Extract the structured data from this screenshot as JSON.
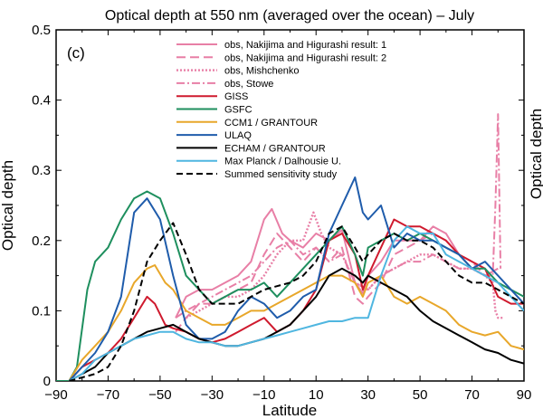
{
  "chart_data": {
    "type": "line",
    "title": "Optical depth at 550 nm (averaged over the ocean) – July",
    "panel_label": "(c)",
    "xlabel": "Latitude",
    "ylabel": "Optical depth",
    "right_clipped_label": "Optical depth",
    "xlim": [
      -90,
      90
    ],
    "ylim": [
      0,
      0.5
    ],
    "xticks": [
      -90,
      -70,
      -50,
      -30,
      -10,
      10,
      30,
      50,
      70,
      90
    ],
    "yticks": [
      0,
      0.1,
      0.2,
      0.3,
      0.4,
      0.5
    ],
    "ytick_labels": [
      "0",
      "0.1",
      "0.2",
      "0.3",
      "0.4",
      "0.5"
    ],
    "grid": false,
    "legend_position": "top-right",
    "series": [
      {
        "name": "obs, Nakijima and Higurashi result: 1",
        "color": "#e87fa6",
        "dash": "solid",
        "x": [
          -44,
          -40,
          -35,
          -30,
          -25,
          -20,
          -15,
          -10,
          -7,
          -3,
          0,
          5,
          10,
          15,
          20,
          25,
          28,
          30,
          35,
          40,
          45,
          50,
          55,
          60,
          65,
          70,
          75,
          80
        ],
        "y": [
          0.09,
          0.12,
          0.13,
          0.13,
          0.14,
          0.15,
          0.17,
          0.23,
          0.245,
          0.21,
          0.2,
          0.19,
          0.21,
          0.2,
          0.215,
          0.14,
          0.125,
          0.15,
          0.17,
          0.2,
          0.2,
          0.2,
          0.22,
          0.21,
          0.18,
          0.16,
          0.15,
          0.16
        ]
      },
      {
        "name": "obs, Nakijima and Higurashi result: 2",
        "color": "#e87fa6",
        "dash": "10,5",
        "x": [
          -44,
          -40,
          -35,
          -30,
          -25,
          -20,
          -15,
          -10,
          -5,
          0,
          5,
          10,
          15,
          20,
          25,
          28,
          30,
          35,
          40,
          45,
          50,
          55,
          60,
          65,
          70,
          75,
          80
        ],
        "y": [
          0.07,
          0.09,
          0.11,
          0.11,
          0.12,
          0.13,
          0.14,
          0.18,
          0.21,
          0.19,
          0.17,
          0.19,
          0.17,
          0.19,
          0.12,
          0.11,
          0.12,
          0.14,
          0.18,
          0.19,
          0.2,
          0.21,
          0.2,
          0.18,
          0.17,
          0.15,
          0.14
        ]
      },
      {
        "name": "obs, Mishchenko",
        "color": "#e87fa6",
        "dash": "2,2",
        "x": [
          -40,
          -35,
          -30,
          -25,
          -20,
          -15,
          -10,
          -5,
          0,
          5,
          9,
          12,
          15,
          20,
          25,
          30,
          35,
          40,
          45,
          50,
          55,
          60,
          65,
          70,
          75,
          78,
          79,
          80,
          81,
          82
        ],
        "y": [
          0.09,
          0.1,
          0.11,
          0.12,
          0.12,
          0.13,
          0.15,
          0.18,
          0.2,
          0.2,
          0.24,
          0.21,
          0.19,
          0.18,
          0.14,
          0.13,
          0.15,
          0.16,
          0.17,
          0.18,
          0.18,
          0.17,
          0.16,
          0.16,
          0.15,
          0.14,
          0.1,
          0.09,
          0.09,
          0.09
        ]
      },
      {
        "name": "obs, Stowe",
        "color": "#e87fa6",
        "dash": "9,3,2,3",
        "x": [
          -44,
          -40,
          -35,
          -30,
          -25,
          -20,
          -15,
          -10,
          -5,
          0,
          5,
          10,
          15,
          20,
          25,
          30,
          35,
          40,
          45,
          50,
          55,
          60,
          65,
          70,
          75,
          78,
          79,
          80,
          81
        ],
        "y": [
          0.09,
          0.1,
          0.11,
          0.12,
          0.13,
          0.14,
          0.15,
          0.17,
          0.19,
          0.2,
          0.18,
          0.19,
          0.17,
          0.18,
          0.14,
          0.13,
          0.15,
          0.16,
          0.17,
          0.17,
          0.18,
          0.17,
          0.16,
          0.16,
          0.15,
          0.15,
          0.25,
          0.38,
          0.16
        ]
      },
      {
        "name": "GISS",
        "color": "#cf1a2e",
        "dash": "solid",
        "x": [
          -85,
          -80,
          -75,
          -70,
          -65,
          -60,
          -55,
          -52,
          -48,
          -45,
          -40,
          -35,
          -30,
          -25,
          -20,
          -15,
          -10,
          -5,
          0,
          5,
          10,
          15,
          20,
          25,
          28,
          30,
          35,
          40,
          45,
          50,
          55,
          60,
          65,
          70,
          75,
          80,
          85,
          90
        ],
        "y": [
          0.0,
          0.02,
          0.03,
          0.04,
          0.06,
          0.09,
          0.12,
          0.11,
          0.08,
          0.075,
          0.07,
          0.06,
          0.055,
          0.06,
          0.07,
          0.08,
          0.09,
          0.07,
          0.08,
          0.1,
          0.13,
          0.2,
          0.21,
          0.18,
          0.13,
          0.15,
          0.19,
          0.23,
          0.22,
          0.22,
          0.21,
          0.2,
          0.18,
          0.17,
          0.16,
          0.12,
          0.11,
          0.11
        ]
      },
      {
        "name": "GSFC",
        "color": "#1e8f5e",
        "dash": "solid",
        "x": [
          -90,
          -85,
          -82,
          -78,
          -75,
          -70,
          -65,
          -60,
          -55,
          -50,
          -45,
          -40,
          -35,
          -30,
          -25,
          -20,
          -15,
          -10,
          -5,
          0,
          5,
          10,
          15,
          20,
          25,
          28,
          30,
          35,
          40,
          45,
          50,
          55,
          60,
          65,
          70,
          75,
          80,
          85,
          90
        ],
        "y": [
          0.0,
          0.0,
          0.02,
          0.13,
          0.17,
          0.19,
          0.23,
          0.26,
          0.27,
          0.26,
          0.21,
          0.15,
          0.13,
          0.11,
          0.12,
          0.13,
          0.13,
          0.14,
          0.12,
          0.14,
          0.16,
          0.18,
          0.2,
          0.22,
          0.18,
          0.15,
          0.19,
          0.2,
          0.21,
          0.2,
          0.21,
          0.2,
          0.19,
          0.18,
          0.16,
          0.16,
          0.14,
          0.13,
          0.12
        ]
      },
      {
        "name": "CCM1 / GRANTOUR",
        "color": "#e8a72a",
        "dash": "solid",
        "x": [
          -85,
          -80,
          -75,
          -70,
          -65,
          -60,
          -55,
          -52,
          -48,
          -45,
          -40,
          -35,
          -30,
          -25,
          -20,
          -15,
          -10,
          -5,
          0,
          5,
          10,
          15,
          20,
          25,
          28,
          30,
          35,
          40,
          45,
          50,
          55,
          60,
          65,
          70,
          75,
          80,
          85,
          90
        ],
        "y": [
          0.0,
          0.03,
          0.05,
          0.07,
          0.1,
          0.14,
          0.16,
          0.165,
          0.14,
          0.13,
          0.1,
          0.09,
          0.08,
          0.08,
          0.09,
          0.1,
          0.1,
          0.11,
          0.12,
          0.13,
          0.14,
          0.15,
          0.15,
          0.14,
          0.12,
          0.14,
          0.15,
          0.12,
          0.11,
          0.12,
          0.11,
          0.1,
          0.08,
          0.07,
          0.065,
          0.07,
          0.05,
          0.045
        ]
      },
      {
        "name": "ULAQ",
        "color": "#1f5cab",
        "dash": "solid",
        "x": [
          -85,
          -80,
          -75,
          -70,
          -65,
          -60,
          -55,
          -50,
          -45,
          -40,
          -35,
          -30,
          -25,
          -20,
          -15,
          -10,
          -5,
          0,
          5,
          10,
          15,
          20,
          25,
          28,
          30,
          35,
          40,
          45,
          50,
          55,
          60,
          65,
          70,
          75,
          80,
          85,
          90
        ],
        "y": [
          0.0,
          0.02,
          0.04,
          0.07,
          0.12,
          0.24,
          0.26,
          0.23,
          0.15,
          0.08,
          0.06,
          0.06,
          0.07,
          0.1,
          0.12,
          0.11,
          0.09,
          0.1,
          0.12,
          0.13,
          0.21,
          0.25,
          0.29,
          0.24,
          0.23,
          0.25,
          0.19,
          0.21,
          0.2,
          0.2,
          0.19,
          0.18,
          0.16,
          0.17,
          0.15,
          0.13,
          0.11
        ]
      },
      {
        "name": "ECHAM / GRANTOUR",
        "color": "#000000",
        "dash": "solid",
        "x": [
          -85,
          -80,
          -75,
          -70,
          -65,
          -60,
          -55,
          -50,
          -45,
          -40,
          -35,
          -30,
          -25,
          -20,
          -15,
          -10,
          -5,
          0,
          5,
          10,
          15,
          20,
          25,
          28,
          30,
          35,
          40,
          45,
          50,
          55,
          60,
          65,
          70,
          75,
          80,
          85,
          90
        ],
        "y": [
          0.0,
          0.01,
          0.02,
          0.04,
          0.05,
          0.06,
          0.07,
          0.075,
          0.08,
          0.07,
          0.06,
          0.055,
          0.05,
          0.05,
          0.055,
          0.06,
          0.07,
          0.08,
          0.1,
          0.12,
          0.15,
          0.16,
          0.15,
          0.14,
          0.15,
          0.14,
          0.13,
          0.12,
          0.1,
          0.085,
          0.075,
          0.065,
          0.055,
          0.045,
          0.04,
          0.03,
          0.025
        ]
      },
      {
        "name": "Max Planck / Dalhousie U.",
        "color": "#4fb6e0",
        "dash": "solid",
        "x": [
          -85,
          -80,
          -75,
          -70,
          -65,
          -60,
          -55,
          -50,
          -45,
          -40,
          -35,
          -30,
          -25,
          -20,
          -15,
          -10,
          -5,
          0,
          5,
          10,
          15,
          20,
          25,
          28,
          30,
          35,
          40,
          45,
          50,
          55,
          60,
          65,
          70,
          75,
          80,
          85,
          90
        ],
        "y": [
          0.0,
          0.01,
          0.03,
          0.04,
          0.05,
          0.06,
          0.065,
          0.07,
          0.07,
          0.06,
          0.055,
          0.055,
          0.05,
          0.05,
          0.055,
          0.06,
          0.065,
          0.07,
          0.075,
          0.08,
          0.085,
          0.085,
          0.09,
          0.09,
          0.09,
          0.15,
          0.2,
          0.22,
          0.21,
          0.21,
          0.18,
          0.17,
          0.16,
          0.15,
          0.14,
          0.12,
          0.1
        ]
      },
      {
        "name": "Summed sensitivity study",
        "color": "#000000",
        "dash": "7,4",
        "x": [
          -85,
          -80,
          -75,
          -70,
          -65,
          -60,
          -55,
          -50,
          -45,
          -40,
          -35,
          -30,
          -25,
          -20,
          -15,
          -10,
          -5,
          0,
          5,
          10,
          15,
          20,
          25,
          28,
          30,
          35,
          40,
          45,
          50,
          55,
          60,
          65,
          70,
          75,
          80,
          85,
          90
        ],
        "y": [
          0.0,
          0.005,
          0.01,
          0.02,
          0.05,
          0.1,
          0.17,
          0.2,
          0.225,
          0.18,
          0.13,
          0.11,
          0.11,
          0.11,
          0.12,
          0.13,
          0.135,
          0.14,
          0.15,
          0.17,
          0.21,
          0.22,
          0.19,
          0.17,
          0.18,
          0.2,
          0.21,
          0.2,
          0.2,
          0.19,
          0.17,
          0.15,
          0.14,
          0.14,
          0.13,
          0.12,
          0.11
        ]
      }
    ]
  }
}
